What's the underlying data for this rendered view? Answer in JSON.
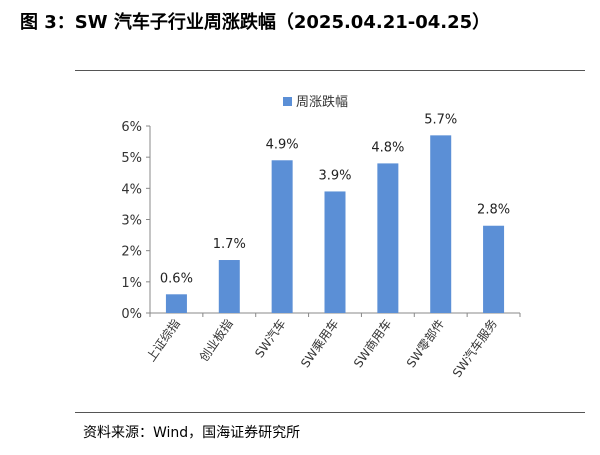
{
  "figure_title": "图 3：SW 汽车子行业周涨跌幅（2025.04.21-04.25）",
  "source": "资料来源：Wind，国海证券研究所",
  "colors": {
    "bar": "#5B8FD6",
    "axis": "#888888"
  },
  "chart_data": {
    "type": "bar",
    "categories": [
      "上证综指",
      "创业板指",
      "SW汽车",
      "SW乘用车",
      "SW商用车",
      "SW零部件",
      "SW汽车服务"
    ],
    "series": [
      {
        "name": "周涨跌幅",
        "values": [
          0.6,
          1.7,
          4.9,
          3.9,
          4.8,
          5.7,
          2.8
        ]
      }
    ],
    "data_labels": [
      "0.6%",
      "1.7%",
      "4.9%",
      "3.9%",
      "4.8%",
      "5.7%",
      "2.8%"
    ],
    "y_ticks": [
      "0%",
      "1%",
      "2%",
      "3%",
      "4%",
      "5%",
      "6%"
    ],
    "ylim": [
      0,
      6
    ],
    "grid": false,
    "legend_position": "top-center"
  }
}
